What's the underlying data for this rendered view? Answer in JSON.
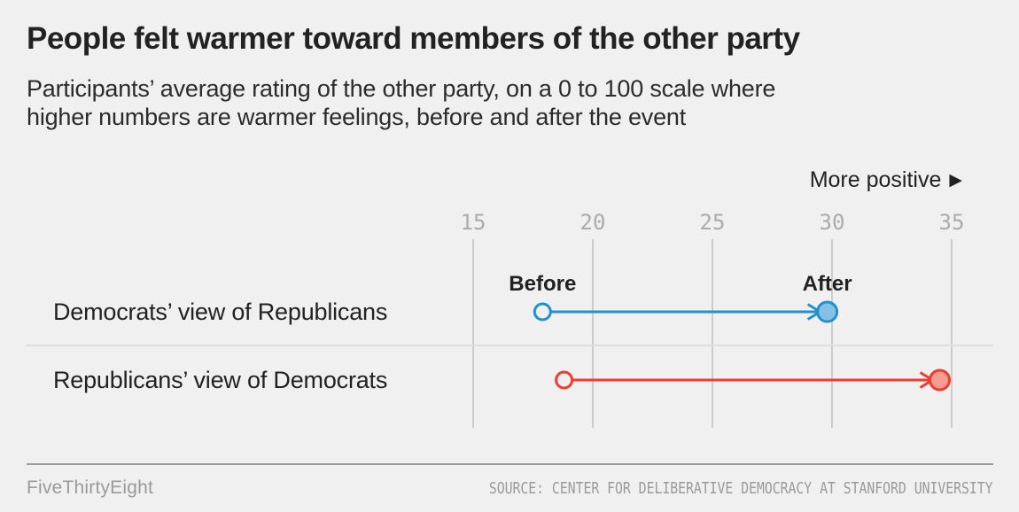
{
  "header": {
    "title": "People felt warmer toward members of the other party",
    "subtitle": "Participants’ average rating of the other party, on a 0 to 100 scale where\nhigher numbers are warmer feelings, before and after the event"
  },
  "chart_data": {
    "type": "dumbbell-arrow",
    "title": "People felt warmer toward members of the other party",
    "x_axis": {
      "min": 15,
      "max": 35,
      "ticks": [
        15,
        20,
        25,
        30,
        35
      ],
      "direction_label": "More positive",
      "grid": true
    },
    "point_labels": {
      "before": "Before",
      "after": "After"
    },
    "rows": [
      {
        "label": "Democrats’ view of Republicans",
        "before": 17.9,
        "after": 29.8,
        "stroke": "#2191CE",
        "fill": "#86C0E4"
      },
      {
        "label": "Republicans’ view of Democrats",
        "before": 18.8,
        "after": 34.5,
        "stroke": "#F03C30",
        "fill": "#F79C90"
      }
    ],
    "colors": {
      "background": "#f0f0f0",
      "gridline": "#cccccc",
      "tick_text": "#ababab"
    }
  },
  "footer": {
    "brand": "FiveThirtyEight",
    "source": "SOURCE: CENTER FOR DELIBERATIVE DEMOCRACY AT STANFORD UNIVERSITY"
  }
}
